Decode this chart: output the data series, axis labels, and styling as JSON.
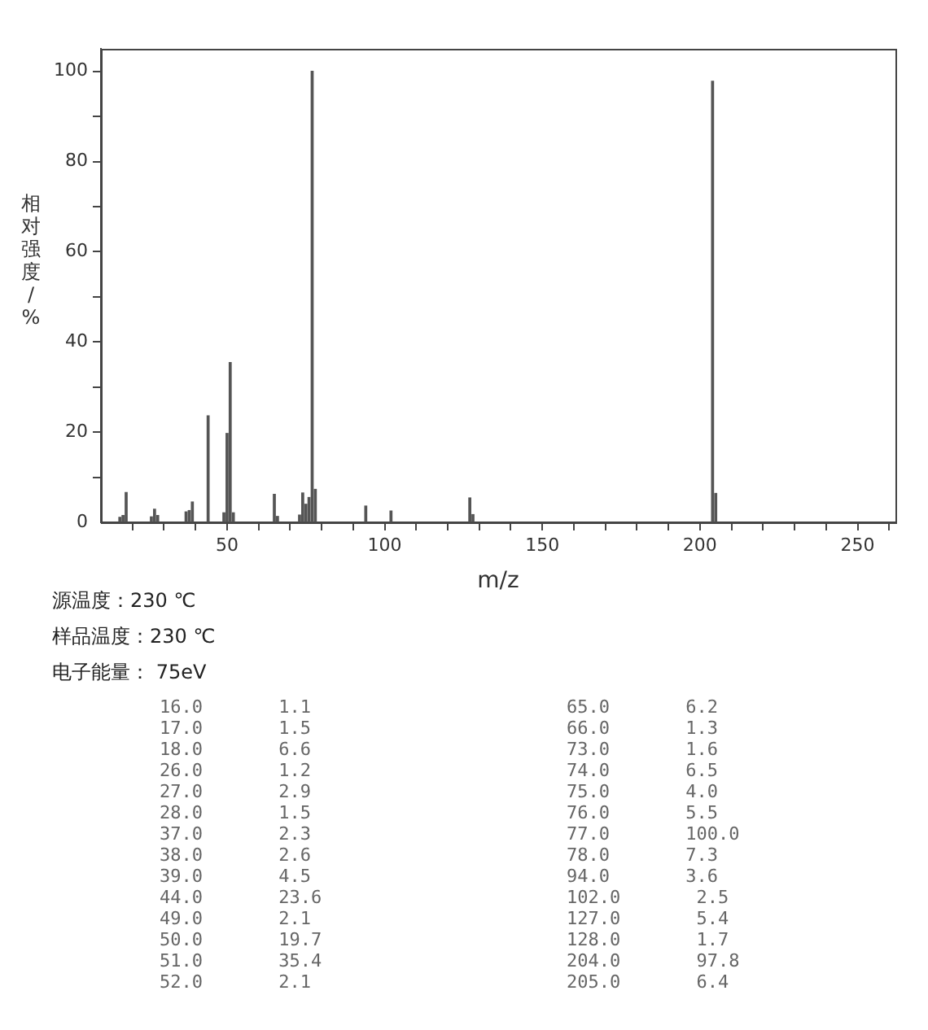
{
  "chart_data": {
    "type": "bar",
    "xlabel": "m/z",
    "ylabel": "相对强度/%",
    "x": [
      16,
      17,
      18,
      26,
      27,
      28,
      37,
      38,
      39,
      44,
      49,
      50,
      51,
      52,
      65,
      66,
      73,
      74,
      75,
      76,
      77,
      78,
      94,
      102,
      127,
      128,
      204,
      205
    ],
    "values": [
      1.1,
      1.5,
      6.6,
      1.2,
      2.9,
      1.5,
      2.3,
      2.6,
      4.5,
      23.6,
      2.1,
      19.7,
      35.4,
      2.1,
      6.2,
      1.3,
      1.6,
      6.5,
      4.0,
      5.5,
      100.0,
      7.3,
      3.6,
      2.5,
      5.4,
      1.7,
      97.8,
      6.4
    ],
    "color": "#555555",
    "xlim": [
      10,
      262
    ],
    "xticks": [
      {
        "value": 20,
        "label": null
      },
      {
        "value": 30,
        "label": null
      },
      {
        "value": 40,
        "label": null
      },
      50,
      {
        "value": 60,
        "label": null
      },
      {
        "value": 70,
        "label": null
      },
      {
        "value": 80,
        "label": null
      },
      {
        "value": 90,
        "label": null
      },
      100,
      {
        "value": 110,
        "label": null
      },
      {
        "value": 120,
        "label": null
      },
      {
        "value": 130,
        "label": null
      },
      {
        "value": 140,
        "label": null
      },
      150,
      {
        "value": 160,
        "label": null
      },
      {
        "value": 170,
        "label": null
      },
      {
        "value": 180,
        "label": null
      },
      {
        "value": 190,
        "label": null
      },
      200,
      {
        "value": 210,
        "label": null
      },
      {
        "value": 220,
        "label": null
      },
      {
        "value": 230,
        "label": null
      },
      {
        "value": 240,
        "label": null
      },
      250,
      {
        "value": 260,
        "label": null
      }
    ],
    "legend": false,
    "ylim": [
      0,
      105
    ],
    "yticks": [
      0,
      {
        "value": 10,
        "label": null
      },
      20,
      {
        "value": 30,
        "label": null
      },
      40,
      {
        "value": 50,
        "label": null
      },
      60,
      {
        "value": 70,
        "label": null
      },
      80,
      {
        "value": 90,
        "label": null
      },
      100
    ],
    "grid": false,
    "annotations": [
      "源温度：230 ℃",
      "样品温度：230 ℃",
      "电子能量： 75eV",
      "16.0 1.1",
      "17.0 1.5",
      "18.0 6.6",
      "26.0 1.2",
      "27.0 2.9",
      "28.0 1.5",
      "37.0 2.3",
      "38.0 2.6",
      "39.0 4.5",
      "44.0 23.6",
      "49.0 2.1",
      "50.0 19.7",
      "51.0 35.4",
      "52.0 2.1",
      "65.0 6.2",
      "66.0 1.3",
      "73.0 1.6",
      "74.0 6.5",
      "75.0 4.0",
      "76.0 5.5",
      "77.0 100.0",
      "78.0 7.3",
      "94.0 3.6",
      "102.0 2.5",
      "127.0 5.4",
      "128.0 1.7",
      "204.0 97.8",
      "205.0 6.4"
    ]
  }
}
